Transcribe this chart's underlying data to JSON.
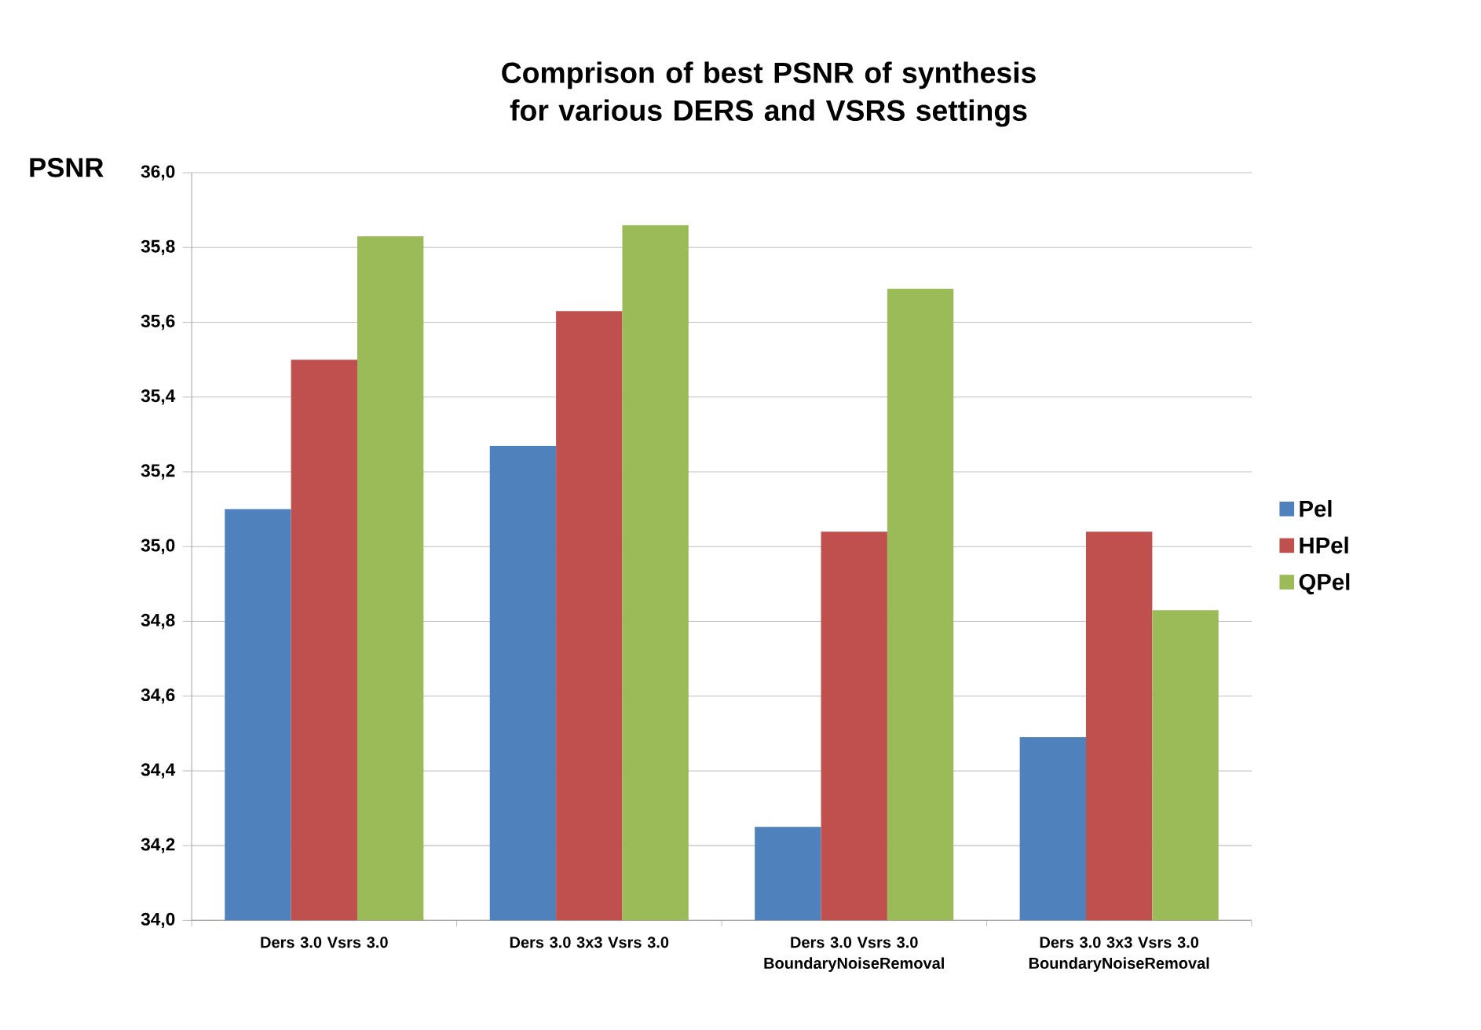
{
  "chart_data": {
    "type": "bar",
    "title": "Comprison of best PSNR of synthesis for various DERS and VSRS settings",
    "ylabel": "PSNR",
    "categories": [
      "Ders 3.0 Vsrs 3.0",
      "Ders 3.0 3x3 Vsrs 3.0",
      "Ders 3.0 Vsrs 3.0 BoundaryNoiseRemoval",
      "Ders 3.0 3x3 Vsrs 3.0 BoundaryNoiseRemoval"
    ],
    "series": [
      {
        "name": "Pel",
        "color": "#4f81bd",
        "values": [
          35.1,
          35.27,
          34.25,
          34.49
        ]
      },
      {
        "name": "HPel",
        "color": "#c0504d",
        "values": [
          35.5,
          35.63,
          35.04,
          35.04
        ]
      },
      {
        "name": "QPel",
        "color": "#9bbb59",
        "values": [
          35.83,
          35.86,
          35.69,
          34.83
        ]
      }
    ],
    "ylim": [
      34.0,
      36.0
    ],
    "yticks": [
      {
        "value": 34.0,
        "label": "34,0"
      },
      {
        "value": 34.2,
        "label": "34,2"
      },
      {
        "value": 34.4,
        "label": "34,4"
      },
      {
        "value": 34.6,
        "label": "34,6"
      },
      {
        "value": 34.8,
        "label": "34,8"
      },
      {
        "value": 35.0,
        "label": "35,0"
      },
      {
        "value": 35.2,
        "label": "35,2"
      },
      {
        "value": 35.4,
        "label": "35,4"
      },
      {
        "value": 35.6,
        "label": "35,6"
      },
      {
        "value": 35.8,
        "label": "35,8"
      },
      {
        "value": 36.0,
        "label": "36,0"
      }
    ],
    "grid": "y",
    "legend": "right"
  }
}
